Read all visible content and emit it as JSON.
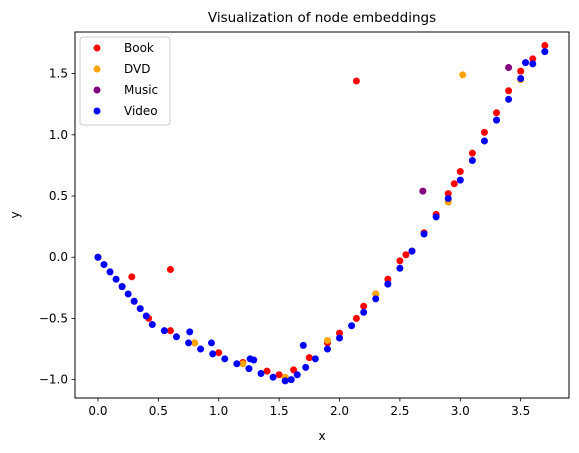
{
  "chart_data": {
    "type": "scatter",
    "title": "Visualization of node embeddings",
    "xlabel": "x",
    "ylabel": "y",
    "xlim": [
      -0.19,
      3.9
    ],
    "ylim": [
      -1.15,
      1.84
    ],
    "xticks": [
      0.0,
      0.5,
      1.0,
      1.5,
      2.0,
      2.5,
      3.0,
      3.5
    ],
    "xtick_labels": [
      "0.0",
      "0.5",
      "1.0",
      "1.5",
      "2.0",
      "2.5",
      "3.0",
      "3.5"
    ],
    "yticks": [
      -1.0,
      -0.5,
      0.0,
      0.5,
      1.0,
      1.5
    ],
    "ytick_labels": [
      "−1.0",
      "−0.5",
      "0.0",
      "0.5",
      "1.0",
      "1.5"
    ],
    "grid": false,
    "legend_position": "top-left",
    "series": [
      {
        "name": "Book",
        "color": "#ff0000",
        "x": [
          0.0,
          0.1,
          0.2,
          0.3,
          0.42,
          0.6,
          0.8,
          1.0,
          1.2,
          1.4,
          1.5,
          1.62,
          1.75,
          1.9,
          2.0,
          2.14,
          2.14,
          2.2,
          2.3,
          2.4,
          2.5,
          2.55,
          2.6,
          2.7,
          2.8,
          2.9,
          2.95,
          3.0,
          3.1,
          3.2,
          3.3,
          3.4,
          3.5,
          3.6,
          3.7,
          0.28,
          0.6
        ],
        "y": [
          0.0,
          -0.12,
          -0.24,
          -0.36,
          -0.5,
          -0.6,
          -0.7,
          -0.78,
          -0.86,
          -0.93,
          -0.96,
          -0.92,
          -0.82,
          -0.7,
          -0.62,
          -0.5,
          1.44,
          -0.4,
          -0.3,
          -0.18,
          -0.03,
          0.02,
          0.05,
          0.2,
          0.35,
          0.52,
          0.6,
          0.7,
          0.85,
          1.02,
          1.18,
          1.36,
          1.52,
          1.62,
          1.73,
          -0.16,
          -0.1
        ]
      },
      {
        "name": "DVD",
        "color": "#ffa500",
        "x": [
          0.0,
          0.4,
          0.8,
          1.2,
          1.55,
          1.9,
          2.3,
          2.6,
          2.9,
          3.02,
          3.2,
          3.5
        ],
        "y": [
          0.0,
          -0.48,
          -0.7,
          -0.87,
          -0.98,
          -0.68,
          -0.3,
          0.05,
          0.45,
          1.49,
          0.95,
          1.45
        ]
      },
      {
        "name": "Music",
        "color": "#800080",
        "x": [
          3.4,
          2.69
        ],
        "y": [
          1.55,
          0.54
        ]
      },
      {
        "name": "Video",
        "color": "#0000ff",
        "x": [
          0.0,
          0.05,
          0.1,
          0.15,
          0.2,
          0.25,
          0.3,
          0.35,
          0.4,
          0.45,
          0.55,
          0.65,
          0.75,
          0.85,
          0.95,
          1.05,
          1.15,
          1.25,
          1.35,
          1.45,
          1.55,
          1.6,
          1.65,
          1.72,
          1.8,
          1.9,
          2.0,
          2.1,
          2.2,
          2.3,
          2.4,
          2.5,
          2.6,
          2.7,
          2.8,
          2.9,
          3.0,
          3.1,
          3.2,
          3.3,
          3.4,
          3.5,
          3.6,
          3.7,
          0.76,
          0.94,
          1.26,
          1.29,
          1.7,
          3.54
        ],
        "y": [
          0.0,
          -0.06,
          -0.12,
          -0.18,
          -0.24,
          -0.3,
          -0.36,
          -0.42,
          -0.48,
          -0.55,
          -0.6,
          -0.65,
          -0.7,
          -0.75,
          -0.79,
          -0.83,
          -0.87,
          -0.91,
          -0.95,
          -0.98,
          -1.01,
          -1.0,
          -0.96,
          -0.9,
          -0.83,
          -0.75,
          -0.66,
          -0.56,
          -0.45,
          -0.34,
          -0.22,
          -0.09,
          0.05,
          0.19,
          0.33,
          0.48,
          0.63,
          0.79,
          0.95,
          1.12,
          1.29,
          1.46,
          1.58,
          1.68,
          -0.61,
          -0.7,
          -0.83,
          -0.84,
          -0.72,
          1.59
        ]
      }
    ]
  }
}
